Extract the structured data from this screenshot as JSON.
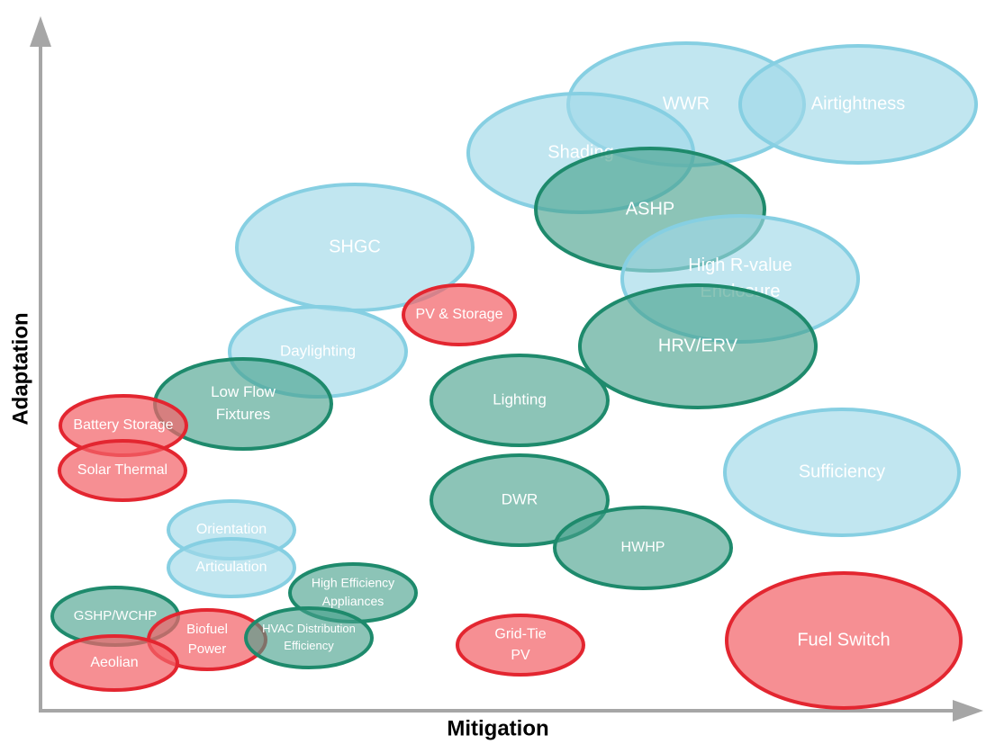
{
  "axes": {
    "x_label": "Mitigation",
    "y_label": "Adaptation"
  },
  "nodes": [
    {
      "lines": [
        "WWR"
      ]
    },
    {
      "lines": [
        "Airtightness"
      ]
    },
    {
      "lines": [
        "Shading"
      ]
    },
    {
      "lines": [
        "ASHP"
      ]
    },
    {
      "lines": [
        "High R-value",
        "Enclosure"
      ]
    },
    {
      "lines": [
        "SHGC"
      ]
    },
    {
      "lines": [
        "PV & Storage"
      ]
    },
    {
      "lines": [
        "Daylighting"
      ]
    },
    {
      "lines": [
        "HRV/ERV"
      ]
    },
    {
      "lines": [
        "Lighting"
      ]
    },
    {
      "lines": [
        "Low Flow",
        "Fixtures"
      ]
    },
    {
      "lines": [
        "Battery Storage"
      ]
    },
    {
      "lines": [
        "Solar Thermal"
      ]
    },
    {
      "lines": [
        "Sufficiency"
      ]
    },
    {
      "lines": [
        "DWR"
      ]
    },
    {
      "lines": [
        "HWHP"
      ]
    },
    {
      "lines": [
        "Orientation"
      ]
    },
    {
      "lines": [
        "Articulation"
      ]
    },
    {
      "lines": [
        "High Efficiency",
        "Appliances"
      ]
    },
    {
      "lines": [
        "GSHP/WCHP"
      ]
    },
    {
      "lines": [
        "Biofuel",
        "Power"
      ]
    },
    {
      "lines": [
        "HVAC Distribution",
        "Efficiency"
      ]
    },
    {
      "lines": [
        "Aeolian"
      ]
    },
    {
      "lines": [
        "Grid-Tie",
        "PV"
      ]
    },
    {
      "lines": [
        "Fuel Switch"
      ]
    }
  ]
}
